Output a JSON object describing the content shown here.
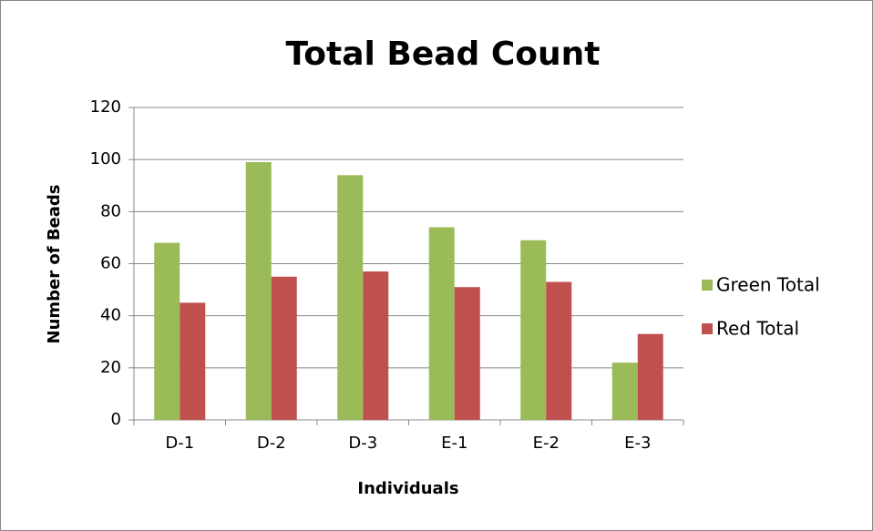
{
  "chart_data": {
    "type": "bar",
    "title": "Total Bead Count",
    "x_label": "Individuals",
    "y_label": "Number of Beads",
    "categories": [
      "D-1",
      "D-2",
      "D-3",
      "E-1",
      "E-2",
      "E-3"
    ],
    "series": [
      {
        "name": "Green Total",
        "color": "#9bbb59",
        "values": [
          68,
          99,
          94,
          74,
          69,
          22
        ]
      },
      {
        "name": "Red Total",
        "color": "#c0504d",
        "values": [
          45,
          55,
          57,
          51,
          53,
          33
        ]
      }
    ],
    "ylim": [
      0,
      120
    ],
    "yticks": [
      0,
      20,
      40,
      60,
      80,
      100,
      120
    ],
    "grid": true,
    "legend": "right"
  }
}
